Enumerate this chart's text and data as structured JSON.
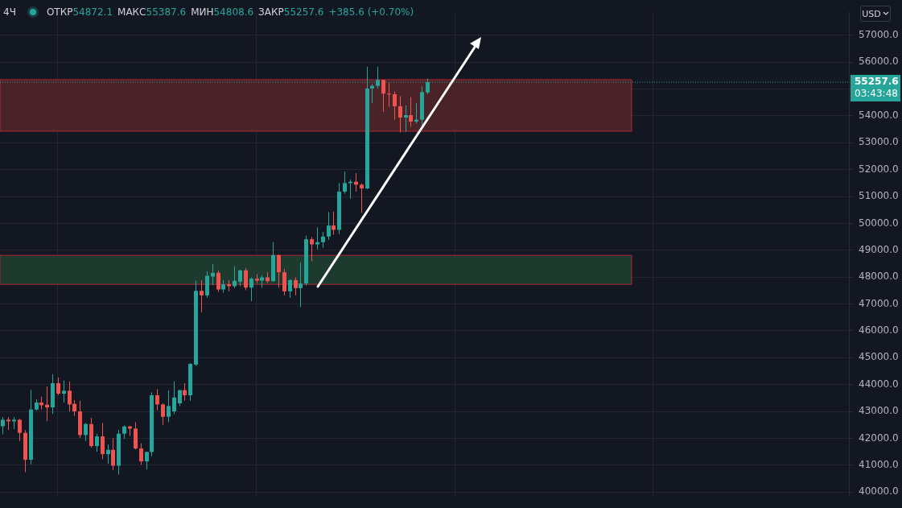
{
  "chart_data": {
    "type": "candlestick",
    "categories": [
      null,
      null,
      null,
      null,
      null,
      null,
      null,
      null,
      null,
      null,
      null,
      null,
      null,
      null,
      null,
      null,
      null,
      null,
      null,
      null,
      null,
      null,
      null,
      null,
      null,
      null,
      null,
      null,
      null,
      null,
      null,
      null,
      null,
      null,
      null,
      null,
      null,
      null,
      null,
      null,
      null,
      null,
      null,
      null,
      null,
      null,
      null,
      null,
      null,
      null,
      null,
      null,
      null,
      null,
      null,
      null,
      null,
      null,
      null,
      null,
      null,
      null,
      null,
      null,
      null,
      null,
      null,
      null,
      null,
      null,
      null,
      null,
      null,
      null,
      null,
      null,
      null,
      null,
      null,
      null,
      null,
      null,
      null,
      null,
      null,
      null,
      null,
      null,
      null,
      null,
      null,
      null,
      null,
      null,
      null,
      null,
      null,
      null,
      null,
      null,
      null,
      null,
      null,
      null,
      null,
      null,
      null,
      null,
      null,
      null,
      null,
      null,
      null,
      null,
      null,
      null,
      null,
      null,
      null,
      null,
      null,
      null,
      null,
      null,
      null,
      null,
      null,
      null,
      null,
      null,
      null,
      null,
      null,
      null,
      null,
      null,
      null,
      null,
      null,
      null,
      null,
      null,
      null,
      null,
      null,
      null,
      null,
      null,
      null,
      null,
      null,
      null,
      null,
      null
    ],
    "ohlc": [
      [
        42450,
        42790,
        42150,
        42690
      ],
      [
        42690,
        42790,
        42310,
        42630
      ],
      [
        42630,
        42790,
        42340,
        42690
      ],
      [
        42690,
        42720,
        41900,
        42200
      ],
      [
        42200,
        42310,
        40740,
        41200
      ],
      [
        41200,
        43800,
        41030,
        43070
      ],
      [
        43070,
        43450,
        43030,
        43330
      ],
      [
        43330,
        43550,
        43070,
        43230
      ],
      [
        43250,
        43930,
        42640,
        43150
      ],
      [
        43150,
        44380,
        42910,
        44050
      ],
      [
        44050,
        44260,
        43610,
        43660
      ],
      [
        43660,
        44150,
        43330,
        43770
      ],
      [
        43770,
        44110,
        43000,
        43260
      ],
      [
        43280,
        43420,
        42830,
        43000
      ],
      [
        43000,
        43400,
        42010,
        42120
      ],
      [
        42120,
        42570,
        41900,
        42530
      ],
      [
        42530,
        42760,
        41650,
        41710
      ],
      [
        41710,
        42170,
        41500,
        42070
      ],
      [
        42070,
        42570,
        41220,
        41410
      ],
      [
        41410,
        41770,
        41050,
        41570
      ],
      [
        41570,
        42000,
        40820,
        40980
      ],
      [
        40980,
        42310,
        40650,
        42170
      ],
      [
        42170,
        42470,
        41980,
        42440
      ],
      [
        42440,
        42470,
        42090,
        42360
      ],
      [
        42360,
        42600,
        41580,
        41620
      ],
      [
        41620,
        41810,
        41010,
        41140
      ],
      [
        41140,
        41500,
        40840,
        41490
      ],
      [
        41490,
        43710,
        41330,
        43600
      ],
      [
        43600,
        43830,
        43040,
        43260
      ],
      [
        43260,
        43300,
        42500,
        42800
      ],
      [
        42800,
        43780,
        42600,
        43200
      ],
      [
        43000,
        44120,
        42900,
        43520
      ],
      [
        43300,
        43800,
        43200,
        43790
      ],
      [
        43790,
        44050,
        43400,
        43600
      ],
      [
        43600,
        44800,
        43400,
        44770
      ],
      [
        44740,
        47870,
        44690,
        47490
      ],
      [
        47490,
        47890,
        46690,
        47320
      ],
      [
        47320,
        48210,
        47230,
        48050
      ],
      [
        48020,
        48490,
        47700,
        48160
      ],
      [
        48160,
        48250,
        47450,
        47540
      ],
      [
        47540,
        47890,
        47420,
        47730
      ],
      [
        47730,
        47890,
        47470,
        47660
      ],
      [
        47660,
        48400,
        47590,
        47860
      ],
      [
        47830,
        48270,
        47660,
        48250
      ],
      [
        48250,
        48330,
        47510,
        47610
      ],
      [
        47610,
        47990,
        47110,
        47940
      ],
      [
        47940,
        48110,
        47780,
        47870
      ],
      [
        47870,
        48060,
        47610,
        47990
      ],
      [
        47990,
        48180,
        47780,
        47850
      ],
      [
        47850,
        49300,
        47830,
        48820
      ],
      [
        48820,
        48840,
        47610,
        48180
      ],
      [
        48180,
        48300,
        47320,
        47470
      ],
      [
        47470,
        47920,
        47230,
        47890
      ],
      [
        47890,
        47990,
        47320,
        47590
      ],
      [
        47590,
        48540,
        46880,
        47760
      ],
      [
        47760,
        49540,
        47680,
        49410
      ],
      [
        49410,
        49490,
        48590,
        49220
      ],
      [
        49220,
        49850,
        49030,
        49300
      ],
      [
        49300,
        49680,
        49090,
        49510
      ],
      [
        49510,
        50420,
        49380,
        49920
      ],
      [
        49920,
        50440,
        49580,
        49760
      ],
      [
        49760,
        51500,
        49600,
        51180
      ],
      [
        51180,
        51930,
        51100,
        51500
      ],
      [
        51500,
        51630,
        50920,
        51550
      ],
      [
        51550,
        51870,
        51180,
        51440
      ],
      [
        51440,
        51490,
        50390,
        51300
      ],
      [
        51300,
        55830,
        51270,
        55020
      ],
      [
        55020,
        55190,
        54480,
        55120
      ],
      [
        55120,
        55830,
        55020,
        55340
      ],
      [
        55340,
        55340,
        54150,
        54830
      ],
      [
        54830,
        55240,
        54340,
        54810
      ],
      [
        54810,
        54910,
        53860,
        54360
      ],
      [
        54360,
        54740,
        53390,
        53940
      ],
      [
        53940,
        54390,
        53410,
        54030
      ],
      [
        54030,
        54700,
        53600,
        53790
      ],
      [
        53790,
        54480,
        53720,
        53860
      ],
      [
        53860,
        55100,
        53600,
        54890
      ],
      [
        54872.1,
        55387.6,
        54808.6,
        55257.6
      ],
      null,
      null,
      null,
      null,
      null,
      null,
      null,
      null,
      null,
      null,
      null,
      null,
      null,
      null,
      null,
      null,
      null,
      null,
      null,
      null,
      null,
      null,
      null,
      null,
      null,
      null,
      null,
      null,
      null,
      null,
      null,
      null,
      null,
      null,
      null,
      null,
      null,
      null,
      null,
      null,
      null,
      null,
      null,
      null,
      null,
      null,
      null,
      null,
      null,
      null,
      null,
      null,
      null,
      null,
      null,
      null,
      null,
      null,
      null,
      null,
      null,
      null,
      null,
      null,
      null,
      null,
      null,
      null,
      null,
      null,
      null,
      null,
      null,
      null,
      null,
      null
    ],
    "colors": [
      "#26a69a",
      "#ef5350",
      "#26a69a",
      "#ef5350",
      "#ef5350",
      "#26a69a",
      "#26a69a",
      "#ef5350",
      "#ef5350",
      "#26a69a",
      "#ef5350",
      "#26a69a",
      "#ef5350",
      "#ef5350",
      "#ef5350",
      "#26a69a",
      "#ef5350",
      "#26a69a",
      "#ef5350",
      "#26a69a",
      "#ef5350",
      "#26a69a",
      "#26a69a",
      "#ef5350",
      "#ef5350",
      "#ef5350",
      "#26a69a",
      "#26a69a",
      "#ef5350",
      "#ef5350",
      "#26a69a",
      "#26a69a",
      "#26a69a",
      "#ef5350",
      "#26a69a",
      "#26a69a",
      "#ef5350",
      "#26a69a",
      "#26a69a",
      "#ef5350",
      "#26a69a",
      "#ef5350",
      "#26a69a",
      "#26a69a",
      "#ef5350",
      "#26a69a",
      "#ef5350",
      "#26a69a",
      "#ef5350",
      "#26a69a",
      "#ef5350",
      "#ef5350",
      "#26a69a",
      "#ef5350",
      "#26a69a",
      "#26a69a",
      "#ef5350",
      "#26a69a",
      "#26a69a",
      "#26a69a",
      "#ef5350",
      "#26a69a",
      "#26a69a",
      "#26a69a",
      "#ef5350",
      "#ef5350",
      "#26a69a",
      "#26a69a",
      "#26a69a",
      "#ef5350",
      "#ef5350",
      "#ef5350",
      "#ef5350",
      "#26a69a",
      "#ef5350",
      "#26a69a",
      "#26a69a",
      "#26a69a",
      null,
      null,
      null,
      null,
      null,
      null,
      null,
      null,
      null,
      null,
      null,
      null,
      null,
      null,
      null,
      null,
      null,
      null,
      null,
      null,
      null,
      null,
      null,
      null,
      null,
      null,
      null,
      null,
      null,
      null,
      null,
      null,
      null,
      null,
      null,
      null,
      null,
      null,
      null,
      null,
      null,
      null,
      null,
      null,
      null,
      null,
      null,
      null,
      null,
      null,
      null,
      null,
      null,
      null,
      null,
      null,
      null,
      null,
      null,
      null,
      null,
      null,
      null,
      null,
      null,
      null,
      null,
      null,
      null,
      null,
      null,
      null,
      null,
      null,
      null,
      null
    ],
    "ylim": [
      39860,
      57860
    ],
    "yticks": [
      {
        "value": 40000,
        "label": "40000.0"
      },
      {
        "value": 41000,
        "label": "41000.0"
      },
      {
        "value": 42000,
        "label": "42000.0"
      },
      {
        "value": 43000,
        "label": "43000.0"
      },
      {
        "value": 44000,
        "label": "44000.0"
      },
      {
        "value": 45000,
        "label": "45000.0"
      },
      {
        "value": 46000,
        "label": "46000.0"
      },
      {
        "value": 47000,
        "label": "47000.0"
      },
      {
        "value": 48000,
        "label": "48000.0"
      },
      {
        "value": 49000,
        "label": "49000.0"
      },
      {
        "value": 50000,
        "label": "50000.0"
      },
      {
        "value": 51000,
        "label": "51000.0"
      },
      {
        "value": 52000,
        "label": "52000.0"
      },
      {
        "value": 53000,
        "label": "53000.0"
      },
      {
        "value": 54000,
        "label": "54000.0"
      },
      {
        "value": 55000,
        "label": null
      },
      {
        "value": 56000,
        "label": "56000.0"
      },
      {
        "value": 57000,
        "label": "57000.0"
      }
    ],
    "bands": [
      {
        "axis": "y",
        "from": 53430,
        "to": 55350,
        "color": "#4a2329"
      },
      {
        "axis": "y",
        "from": 47730,
        "to": 48810,
        "color": "#1e3a2f"
      }
    ],
    "ref_lines": [
      {
        "axis": "y",
        "value": 55257.6,
        "label": "55257.6",
        "color": "#26a69a",
        "line_style": "dotted"
      }
    ],
    "annotations": [
      "4Ч",
      "ОТКР",
      "54872.1",
      "МАКС",
      "55387.6",
      "МИН",
      "54808.6",
      "ЗАКР",
      "55257.6",
      "+385.6 (+0.70%)",
      "USD",
      "03:43:48"
    ],
    "grid": true
  }
}
